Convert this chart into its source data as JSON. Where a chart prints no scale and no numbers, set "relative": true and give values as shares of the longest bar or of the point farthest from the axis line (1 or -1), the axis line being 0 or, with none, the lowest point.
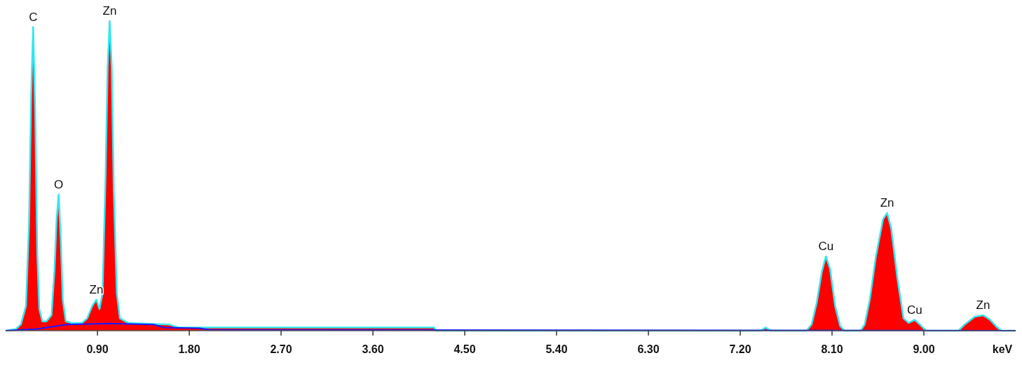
{
  "chart_data": {
    "type": "area",
    "relative": true,
    "xlabel": "keV",
    "xlim": [
      0,
      9.9
    ],
    "xticks": [
      {
        "value": 0.9,
        "label": "0.90"
      },
      {
        "value": 1.8,
        "label": "1.80"
      },
      {
        "value": 2.7,
        "label": "2.70"
      },
      {
        "value": 3.6,
        "label": "3.60"
      },
      {
        "value": 4.5,
        "label": "4.50"
      },
      {
        "value": 5.4,
        "label": "5.40"
      },
      {
        "value": 6.3,
        "label": "6.30"
      },
      {
        "value": 7.2,
        "label": "7.20"
      },
      {
        "value": 8.1,
        "label": "8.10"
      },
      {
        "value": 9.0,
        "label": "9.00"
      }
    ],
    "series": [
      {
        "type": "area",
        "color": "#ff0000",
        "x": [
          0,
          0.1,
          0.15,
          0.2,
          0.23,
          0.25,
          0.27,
          0.29,
          0.31,
          0.33,
          0.36,
          0.4,
          0.45,
          0.48,
          0.5,
          0.52,
          0.54,
          0.56,
          0.59,
          0.65,
          0.75,
          0.8,
          0.85,
          0.89,
          0.92,
          0.95,
          0.98,
          1.0,
          1.02,
          1.04,
          1.06,
          1.09,
          1.12,
          1.2,
          1.6,
          1.7,
          4.2,
          4.22,
          7.4,
          7.45,
          7.5,
          7.85,
          7.9,
          7.95,
          8.0,
          8.04,
          8.08,
          8.13,
          8.18,
          8.22,
          8.38,
          8.42,
          8.47,
          8.53,
          8.6,
          8.64,
          8.68,
          8.74,
          8.8,
          8.85,
          8.91,
          8.96,
          9.02,
          9.34,
          9.4,
          9.5,
          9.58,
          9.65,
          9.72,
          9.76,
          9.9
        ],
        "values": [
          0,
          0.005,
          0.02,
          0.08,
          0.35,
          0.75,
          0.98,
          0.7,
          0.25,
          0.07,
          0.03,
          0.03,
          0.05,
          0.2,
          0.36,
          0.44,
          0.3,
          0.1,
          0.03,
          0.025,
          0.025,
          0.04,
          0.08,
          0.1,
          0.07,
          0.12,
          0.5,
          0.85,
          1,
          0.85,
          0.45,
          0.12,
          0.04,
          0.025,
          0.02,
          0.01,
          0.01,
          0,
          0,
          0.01,
          0,
          0,
          0.02,
          0.09,
          0.19,
          0.24,
          0.2,
          0.08,
          0.015,
          0,
          0,
          0.02,
          0.1,
          0.24,
          0.36,
          0.38,
          0.33,
          0.17,
          0.04,
          0.025,
          0.035,
          0.02,
          0,
          0,
          0.02,
          0.045,
          0.05,
          0.035,
          0.01,
          0,
          0
        ]
      },
      {
        "type": "line",
        "color": "#1a1aff",
        "x": [
          0,
          0.3,
          0.6,
          1.0,
          1.45,
          1.55,
          1.9,
          2.0,
          9.9
        ],
        "values": [
          0,
          0.005,
          0.02,
          0.023,
          0.02,
          0.01,
          0.008,
          0.003,
          0
        ]
      }
    ],
    "annotations": [
      {
        "text": "C",
        "x": 0.27,
        "y": 0.98
      },
      {
        "text": "O",
        "x": 0.52,
        "y": 0.44
      },
      {
        "text": "Zn",
        "x": 0.89,
        "y": 0.1
      },
      {
        "text": "Zn",
        "x": 1.02,
        "y": 1
      },
      {
        "text": "Cu",
        "x": 8.04,
        "y": 0.24
      },
      {
        "text": "Zn",
        "x": 8.64,
        "y": 0.38
      },
      {
        "text": "Cu",
        "x": 8.91,
        "y": 0.035
      },
      {
        "text": "Zn",
        "x": 9.58,
        "y": 0.05
      }
    ]
  }
}
